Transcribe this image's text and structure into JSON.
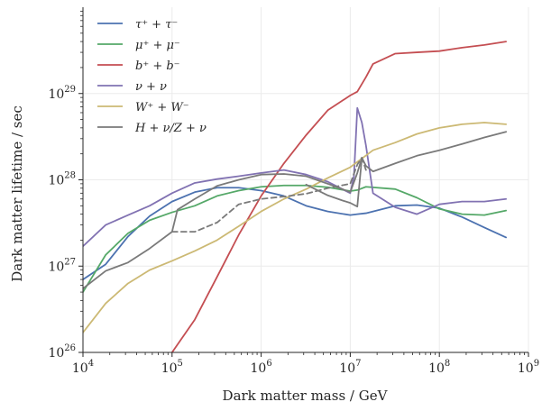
{
  "chart_data": {
    "type": "line",
    "title": "",
    "xlabel": "Dark matter mass / GeV",
    "ylabel": "Dark matter lifetime / sec",
    "xscale": "log",
    "yscale": "log",
    "xlim": [
      10000,
      1000000000
    ],
    "ylim": [
      100000000000000000000000000,
      1e+30
    ],
    "grid": "on",
    "legend_position": "top-left",
    "x_ticks": [
      {
        "base": "10",
        "exp": "4",
        "value": 10000
      },
      {
        "base": "10",
        "exp": "5",
        "value": 100000
      },
      {
        "base": "10",
        "exp": "6",
        "value": 1000000
      },
      {
        "base": "10",
        "exp": "7",
        "value": 10000000
      },
      {
        "base": "10",
        "exp": "8",
        "value": 100000000
      },
      {
        "base": "10",
        "exp": "9",
        "value": 1000000000
      }
    ],
    "y_ticks": [
      {
        "base": "10",
        "exp": "26",
        "value": 1e+26
      },
      {
        "base": "10",
        "exp": "27",
        "value": 1e+27
      },
      {
        "base": "10",
        "exp": "28",
        "value": 1e+28
      },
      {
        "base": "10",
        "exp": "29",
        "value": 1e+29
      }
    ],
    "series": [
      {
        "name": "τ⁺ + τ⁻",
        "color": "#4c72b0",
        "style": "solid",
        "x": [
          10000,
          18000,
          32000,
          56000,
          100000,
          180000,
          320000,
          560000,
          1000000,
          1800000,
          3200000,
          5600000,
          10000000,
          12000000,
          15000000,
          32000000,
          56000000,
          100000000,
          180000000,
          320000000,
          560000000
        ],
        "y": [
          7e+26,
          1.05e+27,
          2.2e+27,
          3.8e+27,
          5.6e+27,
          7.2e+27,
          8.1e+27,
          8.1e+27,
          7.5e+27,
          6.5e+27,
          5e+27,
          4.3e+27,
          3.9e+27,
          4e+27,
          4.1e+27,
          5e+27,
          5.1e+27,
          4.7e+27,
          3.7e+27,
          2.8e+27,
          2.15e+27
        ]
      },
      {
        "name": "μ⁺ + μ⁻",
        "color": "#55a868",
        "style": "solid",
        "x": [
          10000,
          18000,
          32000,
          56000,
          100000,
          180000,
          320000,
          560000,
          1000000,
          1800000,
          3200000,
          5600000,
          10000000,
          12000000,
          15000000,
          32000000,
          56000000,
          100000000,
          180000000,
          320000000,
          560000000
        ],
        "y": [
          5e+26,
          1.35e+27,
          2.4e+27,
          3.4e+27,
          4.2e+27,
          5e+27,
          6.5e+27,
          7.5e+27,
          8.3e+27,
          8.6e+27,
          8.6e+27,
          8.2e+27,
          7.4e+27,
          7.6e+27,
          8.3e+27,
          7.8e+27,
          6.2e+27,
          4.6e+27,
          4e+27,
          3.9e+27,
          4.4e+27
        ]
      },
      {
        "name": "b⁺ + b⁻",
        "color": "#c44e52",
        "style": "solid",
        "x": [
          100000,
          180000,
          320000,
          560000,
          1000000,
          1800000,
          3200000,
          5600000,
          10000000,
          12000000,
          15000000,
          18000000,
          32000000,
          56000000,
          100000000,
          180000000,
          320000000,
          560000000
        ],
        "y": [
          1e+26,
          2.4e+26,
          7.5e+26,
          2.3e+27,
          6.5e+27,
          1.55e+28,
          3.3e+28,
          6.4e+28,
          9.5e+28,
          1.05e+29,
          1.55e+29,
          2.2e+29,
          2.9e+29,
          3e+29,
          3.1e+29,
          3.4e+29,
          3.65e+29,
          4e+29
        ]
      },
      {
        "name": "ν + ν",
        "color": "#8172b2",
        "style": "solid",
        "x": [
          10000,
          18000,
          32000,
          56000,
          100000,
          180000,
          320000,
          560000,
          1000000,
          1800000,
          3200000,
          5600000,
          10000000,
          11000000,
          12000000,
          13500000,
          15000000,
          18000000,
          32000000,
          56000000,
          100000000,
          180000000,
          320000000,
          560000000
        ],
        "y": [
          1.7e+27,
          3e+27,
          3.9e+27,
          5e+27,
          7e+27,
          9.2e+27,
          1.02e+28,
          1.1e+28,
          1.2e+28,
          1.3e+28,
          1.15e+28,
          9.5e+27,
          7e+27,
          1.1e+28,
          6.8e+28,
          4.6e+28,
          2.5e+28,
          7e+27,
          4.8e+27,
          4e+27,
          5.2e+27,
          5.6e+27,
          5.6e+27,
          6e+27
        ]
      },
      {
        "name": "W⁺ + W⁻",
        "color": "#ccb974",
        "style": "solid",
        "x": [
          10000,
          18000,
          32000,
          56000,
          100000,
          180000,
          320000,
          560000,
          1000000,
          1800000,
          3200000,
          5600000,
          10000000,
          18000000,
          32000000,
          56000000,
          100000000,
          180000000,
          320000000,
          560000000
        ],
        "y": [
          1.7e+26,
          3.7e+26,
          6.3e+26,
          9e+26,
          1.15e+27,
          1.5e+27,
          2e+27,
          2.9e+27,
          4.3e+27,
          6e+27,
          7.8e+27,
          1.05e+28,
          1.4e+28,
          2.2e+28,
          2.7e+28,
          3.4e+28,
          4e+28,
          4.4e+28,
          4.6e+28,
          4.4e+28
        ]
      },
      {
        "name": "H + ν/Z + ν",
        "color": "#7a7a7a",
        "style": "solid",
        "x": [
          10000,
          18000,
          32000,
          56000,
          100000,
          115000,
          180000,
          320000,
          560000,
          1000000,
          1800000,
          3200000,
          5600000,
          10000000,
          12000000,
          13500000,
          15000000,
          18000000,
          32000000,
          56000000,
          100000000,
          180000000,
          320000000,
          560000000
        ],
        "y": [
          5.5e+26,
          8.8e+26,
          1.1e+27,
          1.6e+27,
          2.5e+27,
          4.5e+27,
          6e+27,
          8.5e+27,
          1e+28,
          1.15e+28,
          1.17e+28,
          1.1e+28,
          9e+27,
          7.2e+27,
          1.2e+28,
          1.8e+28,
          1.45e+28,
          1.25e+28,
          1.55e+28,
          1.9e+28,
          2.2e+28,
          2.6e+28,
          3.1e+28,
          3.6e+28
        ]
      },
      {
        "name": "",
        "color": "#7a7a7a",
        "style": "dashed",
        "x": [
          100000,
          180000,
          320000,
          560000,
          1000000,
          1800000,
          3200000,
          5600000,
          10000000,
          12000000,
          13500000,
          15000000
        ],
        "y": [
          2.5e+27,
          2.5e+27,
          3.2e+27,
          5.2e+27,
          6e+27,
          6.4e+27,
          6.9e+27,
          8e+27,
          9e+27,
          1.5e+28,
          1.8e+28,
          1.3e+28
        ]
      },
      {
        "name": "",
        "color": "#7a7a7a",
        "style": "solid",
        "x": [
          3200000,
          5600000,
          8000000,
          10000000,
          12000000,
          13500000
        ],
        "y": [
          8.8e+27,
          6.6e+27,
          5.8e+27,
          5.4e+27,
          4.9e+27,
          1.8e+28
        ]
      }
    ]
  }
}
